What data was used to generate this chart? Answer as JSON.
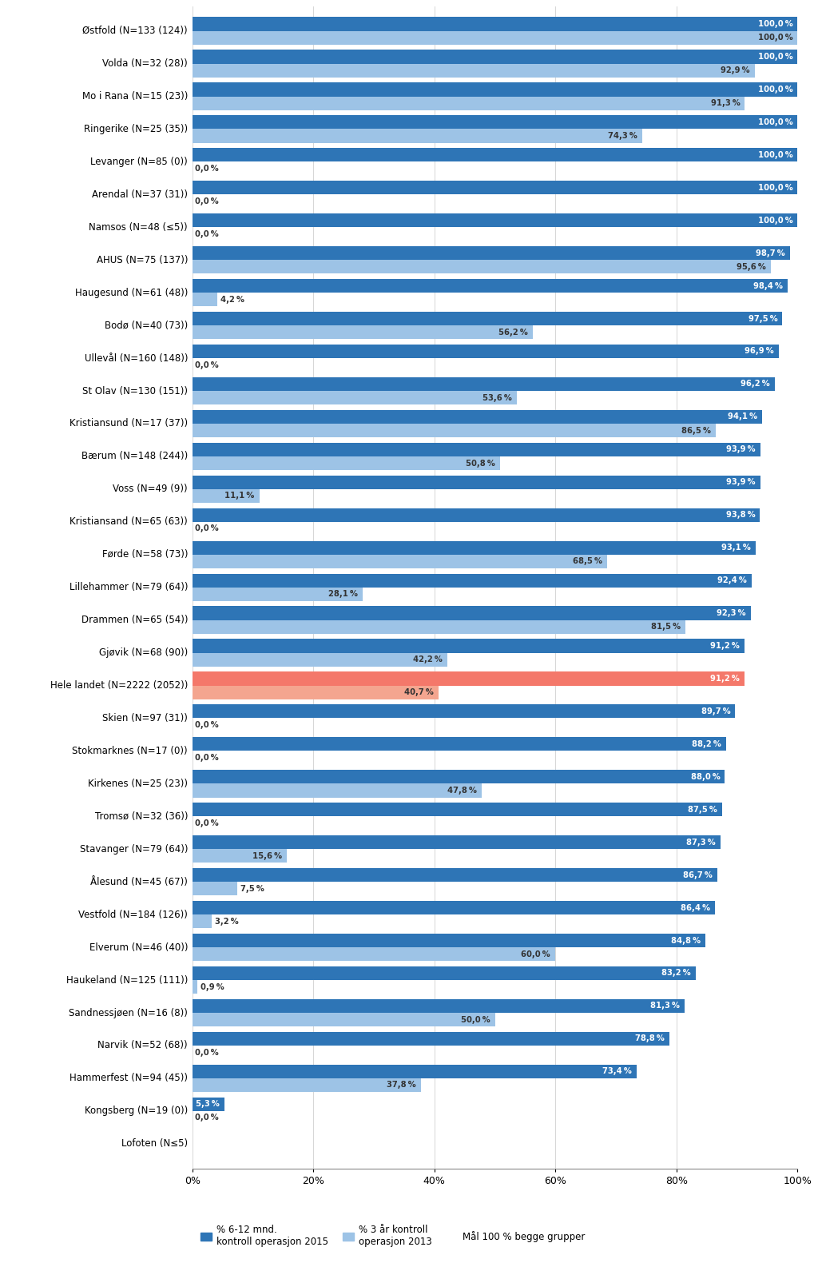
{
  "categories": [
    "Østfold (N=133 (124))",
    "Volda (N=32 (28))",
    "Mo i Rana (N=15 (23))",
    "Ringerike (N=25 (35))",
    "Levanger (N=85 (0))",
    "Arendal (N=37 (31))",
    "Namsos (N=48 (≤5))",
    "AHUS (N=75 (137))",
    "Haugesund (N=61 (48))",
    "Bodø (N=40 (73))",
    "Ullevål (N=160 (148))",
    "St Olav (N=130 (151))",
    "Kristiansund (N=17 (37))",
    "Bærum (N=148 (244))",
    "Voss (N=49 (9))",
    "Kristiansand (N=65 (63))",
    "Førde (N=58 (73))",
    "Lillehammer (N=79 (64))",
    "Drammen (N=65 (54))",
    "Gjøvik (N=68 (90))",
    "Hele landet (N=2222 (2052))",
    "Skien (N=97 (31))",
    "Stokmarknes (N=17 (0))",
    "Kirkenes (N=25 (23))",
    "Tromsø (N=32 (36))",
    "Stavanger (N=79 (64))",
    "Ålesund (N=45 (67))",
    "Vestfold (N=184 (126))",
    "Elverum (N=46 (40))",
    "Haukeland (N=125 (111))",
    "Sandnessjøen (N=16 (8))",
    "Narvik (N=52 (68))",
    "Hammerfest (N=94 (45))",
    "Kongsberg (N=19 (0))",
    "Lofoten (N≤5)"
  ],
  "val_dark": [
    100.0,
    100.0,
    100.0,
    100.0,
    100.0,
    100.0,
    100.0,
    98.7,
    98.4,
    97.5,
    96.9,
    96.2,
    94.1,
    93.9,
    93.9,
    93.8,
    93.1,
    92.4,
    92.3,
    91.2,
    91.2,
    89.7,
    88.2,
    88.0,
    87.5,
    87.3,
    86.7,
    86.4,
    84.8,
    83.2,
    81.3,
    78.8,
    73.4,
    5.3,
    0.0
  ],
  "val_light": [
    100.0,
    92.9,
    91.3,
    74.3,
    0.0,
    0.0,
    0.0,
    95.6,
    4.2,
    56.2,
    0.0,
    53.6,
    86.5,
    50.8,
    11.1,
    0.0,
    68.5,
    28.1,
    81.5,
    42.2,
    40.7,
    0.0,
    0.0,
    47.8,
    0.0,
    15.6,
    7.5,
    3.2,
    60.0,
    0.9,
    50.0,
    0.0,
    37.8,
    0.0,
    0.0
  ],
  "show_dark_label": [
    true,
    true,
    true,
    true,
    true,
    true,
    true,
    true,
    true,
    true,
    true,
    true,
    true,
    true,
    true,
    true,
    true,
    true,
    true,
    true,
    true,
    true,
    true,
    true,
    true,
    true,
    true,
    true,
    true,
    true,
    true,
    true,
    true,
    true,
    false
  ],
  "show_light_label_zero": [
    false,
    false,
    false,
    false,
    true,
    true,
    true,
    false,
    false,
    false,
    true,
    false,
    false,
    false,
    false,
    true,
    false,
    false,
    false,
    false,
    false,
    true,
    true,
    false,
    true,
    false,
    false,
    false,
    false,
    false,
    false,
    true,
    false,
    true,
    false
  ],
  "color_dark": "#2e75b6",
  "color_light": "#9dc3e6",
  "color_highlight_dark": "#f4786a",
  "color_highlight_light": "#f4a58f",
  "highlight_idx": 20,
  "figsize": [
    10.24,
    15.8
  ],
  "xlim": [
    0,
    100
  ],
  "xtick_labels": [
    "0%",
    "20%",
    "40%",
    "60%",
    "80%",
    "100%"
  ],
  "xtick_vals": [
    0,
    20,
    40,
    60,
    80,
    100
  ],
  "legend_dark_label": "% 6-12 mnd.\nkontroll operasjon 2015",
  "legend_light_label": "% 3 år kontroll\noperasjon 2013",
  "legend_target_label": "Mål 100 % begge grupper",
  "background_color": "#ffffff"
}
